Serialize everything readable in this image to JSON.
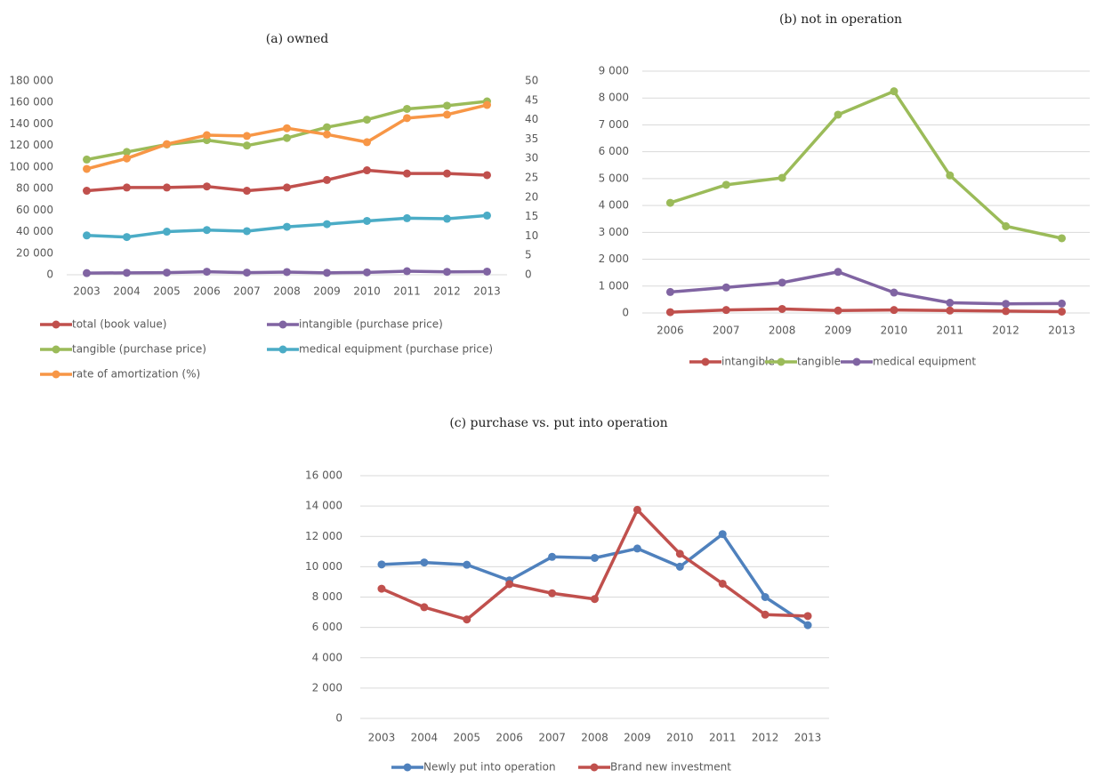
{
  "chart_data": [
    {
      "type": "line",
      "title": "(a) owned",
      "x": [
        2003,
        2004,
        2005,
        2006,
        2007,
        2008,
        2009,
        2010,
        2011,
        2012,
        2013
      ],
      "ylim": [
        0,
        180000
      ],
      "yticks": [
        0,
        {
          "value": 20000,
          "label": "20 000"
        },
        {
          "value": 40000,
          "label": "40 000"
        },
        {
          "value": 60000,
          "label": "60 000"
        },
        {
          "value": 80000,
          "label": "80 000"
        },
        {
          "value": 100000,
          "label": "100 000"
        },
        {
          "value": 120000,
          "label": "120 000"
        },
        {
          "value": 140000,
          "label": "140 000"
        },
        {
          "value": 160000,
          "label": "160 000"
        },
        {
          "value": 180000,
          "label": "180 000"
        }
      ],
      "y2lim": [
        0,
        50
      ],
      "y2ticks": [
        0,
        5,
        10,
        15,
        20,
        25,
        30,
        35,
        40,
        45,
        50
      ],
      "grid": false,
      "legend": "bottom",
      "series": [
        {
          "name": "total (book value)",
          "color": "#c0504d",
          "values": [
            78000,
            81000,
            81000,
            82000,
            78000,
            81000,
            88000,
            97000,
            94000,
            94000,
            92500
          ]
        },
        {
          "name": "intangible (purchase price)",
          "color": "#8064a2",
          "values": [
            1500,
            1800,
            2000,
            2800,
            2000,
            2500,
            1800,
            2200,
            3300,
            2700,
            2900
          ]
        },
        {
          "name": "tangible (purchase price)",
          "color": "#9bbb59",
          "values": [
            107000,
            114000,
            121000,
            125000,
            120000,
            127000,
            137000,
            144000,
            154000,
            157000,
            161000
          ]
        },
        {
          "name": "medical equipment (purchase price)",
          "color": "#4bacc6",
          "values": [
            36500,
            35000,
            40000,
            41500,
            40500,
            44500,
            47000,
            50000,
            52500,
            52000,
            55000
          ]
        },
        {
          "name": "rate of amortization (%)",
          "color": "#f79646",
          "axis": "y2",
          "values": [
            27.3,
            30,
            33.7,
            36,
            35.8,
            37.8,
            36.2,
            34.2,
            40.4,
            41.3,
            43.8
          ]
        }
      ]
    },
    {
      "type": "line",
      "title": "(b) not in operation",
      "x": [
        2006,
        2007,
        2008,
        2009,
        2010,
        2011,
        2012,
        2013
      ],
      "ylim": [
        0,
        9000
      ],
      "yticks": [
        0,
        {
          "value": 1000,
          "label": "1 000"
        },
        {
          "value": 2000,
          "label": "2 000"
        },
        {
          "value": 3000,
          "label": "3 000"
        },
        {
          "value": 4000,
          "label": "4 000"
        },
        {
          "value": 5000,
          "label": "5 000"
        },
        {
          "value": 6000,
          "label": "6 000"
        },
        {
          "value": 7000,
          "label": "7 000"
        },
        {
          "value": 8000,
          "label": "8 000"
        },
        {
          "value": 9000,
          "label": "9 000"
        }
      ],
      "grid": true,
      "legend": "bottom",
      "series": [
        {
          "name": "intangible",
          "color": "#c0504d",
          "values": [
            30,
            110,
            150,
            90,
            110,
            90,
            70,
            50
          ]
        },
        {
          "name": "tangible",
          "color": "#9bbb59",
          "values": [
            4100,
            4770,
            5030,
            7380,
            8250,
            5120,
            3230,
            2780
          ]
        },
        {
          "name": "medical equipment",
          "color": "#8064a2",
          "values": [
            780,
            950,
            1130,
            1530,
            760,
            380,
            340,
            350
          ]
        }
      ]
    },
    {
      "type": "line",
      "title": "(c) purchase vs. put into operation",
      "x": [
        2003,
        2004,
        2005,
        2006,
        2007,
        2008,
        2009,
        2010,
        2011,
        2012,
        2013
      ],
      "ylim": [
        0,
        16000
      ],
      "yticks": [
        0,
        {
          "value": 2000,
          "label": "2 000"
        },
        {
          "value": 4000,
          "label": "4 000"
        },
        {
          "value": 6000,
          "label": "6 000"
        },
        {
          "value": 8000,
          "label": "8 000"
        },
        {
          "value": 10000,
          "label": "10 000"
        },
        {
          "value": 12000,
          "label": "12 000"
        },
        {
          "value": 14000,
          "label": "14 000"
        },
        {
          "value": 16000,
          "label": "16 000"
        }
      ],
      "grid": true,
      "legend": "bottom",
      "series": [
        {
          "name": "Newly put into operation",
          "color": "#4f81bd",
          "values": [
            10150,
            10280,
            10130,
            9100,
            10650,
            10580,
            11200,
            10000,
            12150,
            8000,
            6150
          ]
        },
        {
          "name": "Brand new investment",
          "color": "#c0504d",
          "values": [
            8550,
            7330,
            6520,
            8850,
            8250,
            7870,
            13750,
            10850,
            8880,
            6840,
            6750
          ]
        }
      ]
    }
  ]
}
